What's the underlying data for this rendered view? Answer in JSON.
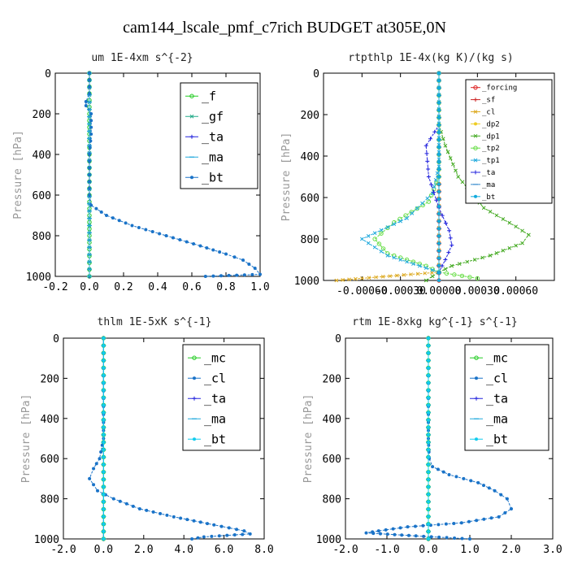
{
  "title": "cam144_lscale_pmf_c7rich  BUDGET at305E,0N",
  "chart_data": [
    {
      "type": "line",
      "title": "um  1E-4xm s^{-2}",
      "ylabel": "Pressure [hPa]",
      "xlim": [
        -0.2,
        1.0
      ],
      "ylim": [
        1000,
        0
      ],
      "xticks": [
        -0.2,
        0.0,
        0.2,
        0.4,
        0.6,
        0.8,
        1.0
      ],
      "xtick_labels": [
        "-0.2",
        "0.0",
        "0.2",
        "0.4",
        "0.6",
        "0.8",
        "1.0"
      ],
      "yticks": [
        0,
        200,
        400,
        600,
        800,
        1000
      ],
      "ytick_labels": [
        "0",
        "200",
        "400",
        "600",
        "800",
        "1000"
      ],
      "legend": {
        "placement": "top-right",
        "size": "large"
      },
      "series": [
        {
          "name": "_f",
          "color": "#22cc22",
          "marker": "circle",
          "points": [
            [
              0,
              0
            ],
            [
              0,
              200
            ],
            [
              0,
              400
            ],
            [
              0,
              600
            ],
            [
              0,
              800
            ],
            [
              0,
              1000
            ]
          ]
        },
        {
          "name": "_gf",
          "color": "#22aa88",
          "marker": "x",
          "points": [
            [
              0,
              0
            ],
            [
              0,
              1000
            ]
          ]
        },
        {
          "name": "_ta",
          "color": "#2222dd",
          "marker": "plus",
          "points": [
            [
              0,
              0
            ],
            [
              0,
              1000
            ]
          ]
        },
        {
          "name": "_ma",
          "color": "#22aadd",
          "marker": "dash",
          "points": [
            [
              0,
              0
            ],
            [
              0,
              1000
            ]
          ]
        },
        {
          "name": "_bt",
          "color": "#1a73c8",
          "marker": "dot",
          "points": [
            [
              0,
              0
            ],
            [
              0,
              100
            ],
            [
              -0.02,
              140
            ],
            [
              -0.02,
              160
            ],
            [
              0.01,
              200
            ],
            [
              0.01,
              300
            ],
            [
              0,
              400
            ],
            [
              0,
              500
            ],
            [
              0,
              600
            ],
            [
              0.01,
              650
            ],
            [
              0.1,
              700
            ],
            [
              0.25,
              750
            ],
            [
              0.45,
              800
            ],
            [
              0.65,
              850
            ],
            [
              0.8,
              890
            ],
            [
              0.9,
              920
            ],
            [
              0.97,
              960
            ],
            [
              1.0,
              990
            ],
            [
              0.68,
              1000
            ]
          ]
        }
      ]
    },
    {
      "type": "line",
      "title": "rtpthlp  1E-4x(kg K)/(kg s)",
      "ylabel": "Pressure [hPa]",
      "xlim": [
        -0.0009,
        0.0009
      ],
      "ylim": [
        1000,
        0
      ],
      "xticks": [
        -0.0006,
        -0.0003,
        0.0,
        0.0003,
        0.0006
      ],
      "xtick_labels": [
        "-0.00060",
        "-0.00030",
        "0.00000",
        "0.00030",
        "0.00060"
      ],
      "yticks": [
        0,
        200,
        400,
        600,
        800,
        1000
      ],
      "ytick_labels": [
        "0",
        "200",
        "400",
        "600",
        "800",
        "1000"
      ],
      "legend": {
        "placement": "top-right",
        "size": "small"
      },
      "series": [
        {
          "name": "_forcing",
          "color": "#dd2222",
          "marker": "circle",
          "points": [
            [
              0,
              0
            ],
            [
              0,
              1000
            ]
          ]
        },
        {
          "name": "_sf",
          "color": "#cc2222",
          "marker": "plus",
          "points": [
            [
              0,
              0
            ],
            [
              0,
              1000
            ]
          ]
        },
        {
          "name": "_cl",
          "color": "#ddaa22",
          "marker": "x",
          "points": [
            [
              0,
              0
            ],
            [
              0,
              960
            ],
            [
              -0.0006,
              990
            ],
            [
              -0.0008,
              1000
            ]
          ]
        },
        {
          "name": "_dp2",
          "color": "#eecc22",
          "marker": "dot",
          "points": [
            [
              0,
              0
            ],
            [
              0,
              1000
            ]
          ]
        },
        {
          "name": "_dp1",
          "color": "#44aa22",
          "marker": "x",
          "points": [
            [
              0,
              0
            ],
            [
              0,
              250
            ],
            [
              5e-05,
              350
            ],
            [
              0.00015,
              500
            ],
            [
              0.00035,
              650
            ],
            [
              0.0006,
              740
            ],
            [
              0.0007,
              780
            ],
            [
              0.00065,
              820
            ],
            [
              0.0004,
              880
            ],
            [
              0.0001,
              930
            ],
            [
              0,
              960
            ],
            [
              -0.0001,
              1000
            ]
          ]
        },
        {
          "name": "_tp2",
          "color": "#66dd44",
          "marker": "circle",
          "points": [
            [
              0,
              0
            ],
            [
              0,
              500
            ],
            [
              -8e-05,
              620
            ],
            [
              -0.00035,
              720
            ],
            [
              -0.0005,
              800
            ],
            [
              -0.0004,
              870
            ],
            [
              -0.0001,
              930
            ],
            [
              0,
              960
            ],
            [
              0.0003,
              990
            ]
          ]
        },
        {
          "name": "_tp1",
          "color": "#22aadd",
          "marker": "x",
          "points": [
            [
              0,
              0
            ],
            [
              0,
              450
            ],
            [
              -5e-05,
              580
            ],
            [
              -0.00025,
              700
            ],
            [
              -0.0006,
              800
            ],
            [
              -0.0004,
              880
            ],
            [
              -0.0001,
              940
            ],
            [
              0,
              960
            ]
          ]
        },
        {
          "name": "_ta",
          "color": "#2222dd",
          "marker": "plus",
          "points": [
            [
              0,
              0
            ],
            [
              0,
              250
            ],
            [
              -0.0001,
              350
            ],
            [
              -8e-05,
              500
            ],
            [
              0,
              650
            ],
            [
              8e-05,
              760
            ],
            [
              0.0001,
              830
            ],
            [
              5e-05,
              900
            ],
            [
              0,
              960
            ]
          ]
        },
        {
          "name": "_ma",
          "color": "#3388cc",
          "marker": "dash",
          "points": [
            [
              0,
              0
            ],
            [
              0,
              1000
            ]
          ]
        },
        {
          "name": "_bt",
          "color": "#11aadd",
          "marker": "dot",
          "points": [
            [
              0,
              0
            ],
            [
              0,
              1000
            ]
          ]
        }
      ]
    },
    {
      "type": "line",
      "title": "thlm  1E-5xK s^{-1}",
      "ylabel": "Pressure [hPa]",
      "xlim": [
        -2.0,
        8.0
      ],
      "ylim": [
        1000,
        0
      ],
      "xticks": [
        -2.0,
        0.0,
        2.0,
        4.0,
        6.0,
        8.0
      ],
      "xtick_labels": [
        "-2.0",
        "0.0",
        "2.0",
        "4.0",
        "6.0",
        "8.0"
      ],
      "yticks": [
        0,
        200,
        400,
        600,
        800,
        1000
      ],
      "ytick_labels": [
        "0",
        "200",
        "400",
        "600",
        "800",
        "1000"
      ],
      "legend": {
        "placement": "top-right",
        "size": "large"
      },
      "series": [
        {
          "name": "_mc",
          "color": "#22cc22",
          "marker": "circle",
          "points": [
            [
              0,
              0
            ],
            [
              0,
              1000
            ]
          ]
        },
        {
          "name": "_cl",
          "color": "#1a73c8",
          "marker": "dot",
          "points": [
            [
              0,
              0
            ],
            [
              0,
              300
            ],
            [
              0,
              500
            ],
            [
              -0.2,
              600
            ],
            [
              -0.5,
              650
            ],
            [
              -0.7,
              700
            ],
            [
              -0.3,
              760
            ],
            [
              0.5,
              800
            ],
            [
              1.8,
              850
            ],
            [
              3.5,
              890
            ],
            [
              5.5,
              930
            ],
            [
              7.0,
              960
            ],
            [
              7.3,
              975
            ],
            [
              5.0,
              990
            ],
            [
              4.4,
              1000
            ]
          ]
        },
        {
          "name": "_ta",
          "color": "#2222dd",
          "marker": "plus",
          "points": [
            [
              0,
              0
            ],
            [
              0,
              1000
            ]
          ]
        },
        {
          "name": "_ma",
          "color": "#22aadd",
          "marker": "dash",
          "points": [
            [
              0,
              0
            ],
            [
              0,
              1000
            ]
          ]
        },
        {
          "name": "_bt",
          "color": "#11ccee",
          "marker": "dot",
          "points": [
            [
              0,
              0
            ],
            [
              0,
              1000
            ]
          ]
        }
      ]
    },
    {
      "type": "line",
      "title": "rtm  1E-8xkg kg^{-1} s^{-1}",
      "ylabel": "Pressure [hPa]",
      "xlim": [
        -2.0,
        3.0
      ],
      "ylim": [
        1000,
        0
      ],
      "xticks": [
        -2.0,
        -1.0,
        0.0,
        1.0,
        2.0,
        3.0
      ],
      "xtick_labels": [
        "-2.0",
        "-1.0",
        "0.0",
        "1.0",
        "2.0",
        "3.0"
      ],
      "yticks": [
        0,
        200,
        400,
        600,
        800,
        1000
      ],
      "ytick_labels": [
        "0",
        "200",
        "400",
        "600",
        "800",
        "1000"
      ],
      "legend": {
        "placement": "top-right",
        "size": "large"
      },
      "series": [
        {
          "name": "_mc",
          "color": "#22cc22",
          "marker": "circle",
          "points": [
            [
              0,
              0
            ],
            [
              0,
              1000
            ]
          ]
        },
        {
          "name": "_cl",
          "color": "#1a73c8",
          "marker": "dot",
          "points": [
            [
              0,
              0
            ],
            [
              0,
              300
            ],
            [
              0,
              500
            ],
            [
              0.02,
              600
            ],
            [
              0.1,
              640
            ],
            [
              0.5,
              680
            ],
            [
              1.2,
              720
            ],
            [
              1.6,
              760
            ],
            [
              1.9,
              800
            ],
            [
              2.0,
              850
            ],
            [
              1.7,
              890
            ],
            [
              0.8,
              920
            ],
            [
              -0.5,
              940
            ],
            [
              -1.2,
              960
            ],
            [
              -1.5,
              970
            ],
            [
              -0.3,
              985
            ],
            [
              1.0,
              1000
            ]
          ]
        },
        {
          "name": "_ta",
          "color": "#2222dd",
          "marker": "plus",
          "points": [
            [
              0,
              0
            ],
            [
              0,
              1000
            ]
          ]
        },
        {
          "name": "_ma",
          "color": "#22aadd",
          "marker": "dash",
          "points": [
            [
              0,
              0
            ],
            [
              0,
              1000
            ]
          ]
        },
        {
          "name": "_bt",
          "color": "#11ccee",
          "marker": "dot",
          "points": [
            [
              0,
              0
            ],
            [
              0,
              1000
            ]
          ]
        }
      ]
    }
  ]
}
